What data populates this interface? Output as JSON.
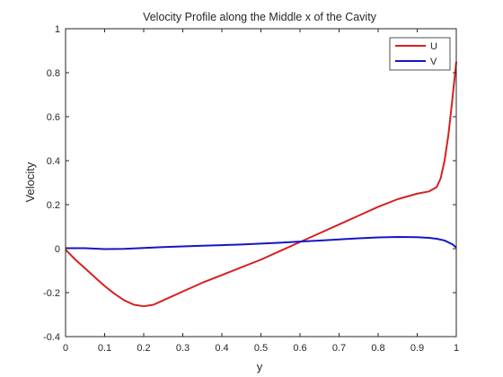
{
  "chart_data": {
    "type": "line",
    "title": "Velocity Profile along the Middle x of the Cavity",
    "xlabel": "y",
    "ylabel": "Velocity",
    "xlim": [
      0,
      1
    ],
    "ylim": [
      -0.4,
      1
    ],
    "xticks": [
      0,
      0.1,
      0.2,
      0.3,
      0.4,
      0.5,
      0.6,
      0.7,
      0.8,
      0.9,
      1
    ],
    "yticks": [
      -0.4,
      -0.2,
      0,
      0.2,
      0.4,
      0.6,
      0.8,
      1
    ],
    "xtick_labels": [
      "0",
      "0.1",
      "0.2",
      "0.3",
      "0.4",
      "0.5",
      "0.6",
      "0.7",
      "0.8",
      "0.9",
      "1"
    ],
    "ytick_labels": [
      "-0.4",
      "-0.2",
      "0",
      "0.2",
      "0.4",
      "0.6",
      "0.8",
      "1"
    ],
    "grid": false,
    "legend_position": "top-right",
    "series": [
      {
        "name": "U",
        "color": "#d62020",
        "x": [
          0,
          0.025,
          0.05,
          0.075,
          0.1,
          0.125,
          0.15,
          0.175,
          0.2,
          0.225,
          0.25,
          0.3,
          0.35,
          0.4,
          0.45,
          0.5,
          0.55,
          0.6,
          0.65,
          0.7,
          0.75,
          0.8,
          0.85,
          0.9,
          0.93,
          0.95,
          0.96,
          0.97,
          0.98,
          0.99,
          1.0
        ],
        "y": [
          -0.005,
          -0.05,
          -0.09,
          -0.13,
          -0.17,
          -0.205,
          -0.235,
          -0.255,
          -0.262,
          -0.255,
          -0.235,
          -0.195,
          -0.155,
          -0.12,
          -0.085,
          -0.05,
          -0.01,
          0.03,
          0.07,
          0.11,
          0.15,
          0.19,
          0.225,
          0.25,
          0.26,
          0.28,
          0.32,
          0.4,
          0.52,
          0.68,
          0.85
        ]
      },
      {
        "name": "V",
        "color": "#1515c8",
        "x": [
          0,
          0.05,
          0.1,
          0.15,
          0.2,
          0.25,
          0.3,
          0.35,
          0.4,
          0.45,
          0.5,
          0.55,
          0.6,
          0.65,
          0.7,
          0.75,
          0.8,
          0.85,
          0.9,
          0.93,
          0.95,
          0.97,
          0.99,
          1.0
        ],
        "y": [
          0.002,
          0.002,
          -0.002,
          -0.001,
          0.003,
          0.007,
          0.01,
          0.013,
          0.016,
          0.019,
          0.023,
          0.027,
          0.032,
          0.037,
          0.042,
          0.047,
          0.051,
          0.053,
          0.052,
          0.049,
          0.045,
          0.037,
          0.02,
          0.005
        ]
      }
    ]
  }
}
